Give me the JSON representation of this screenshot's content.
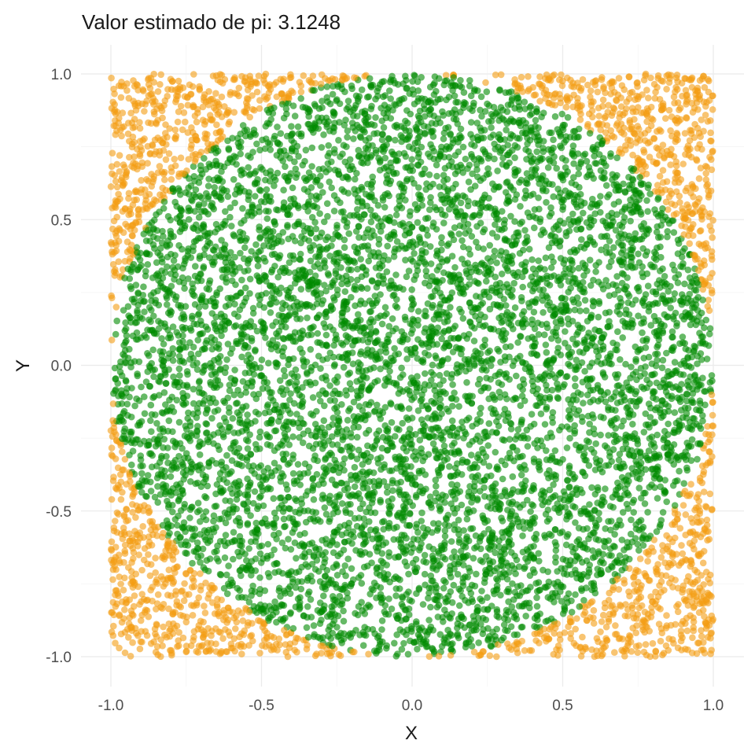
{
  "chart_data": {
    "type": "scatter",
    "title": "Valor estimado de pi: 3.1248",
    "xlabel": "X",
    "ylabel": "Y",
    "xlim": [
      -1.0,
      1.0
    ],
    "ylim": [
      -1.0,
      1.0
    ],
    "x_ticks": [
      "-1.0",
      "-0.5",
      "0.0",
      "0.5",
      "1.0"
    ],
    "y_ticks": [
      "-1.0",
      "-0.5",
      "0.0",
      "0.5",
      "1.0"
    ],
    "grid": true,
    "legend": "none",
    "estimated_pi": 3.1248,
    "series": [
      {
        "color": "#008B00",
        "condition": "x^2 + y^2 <= 1"
      },
      {
        "color": "#F39C12",
        "condition": "x^2 + y^2 > 1"
      }
    ],
    "point_distribution": "uniform random in [-1,1] x [-1,1]"
  }
}
